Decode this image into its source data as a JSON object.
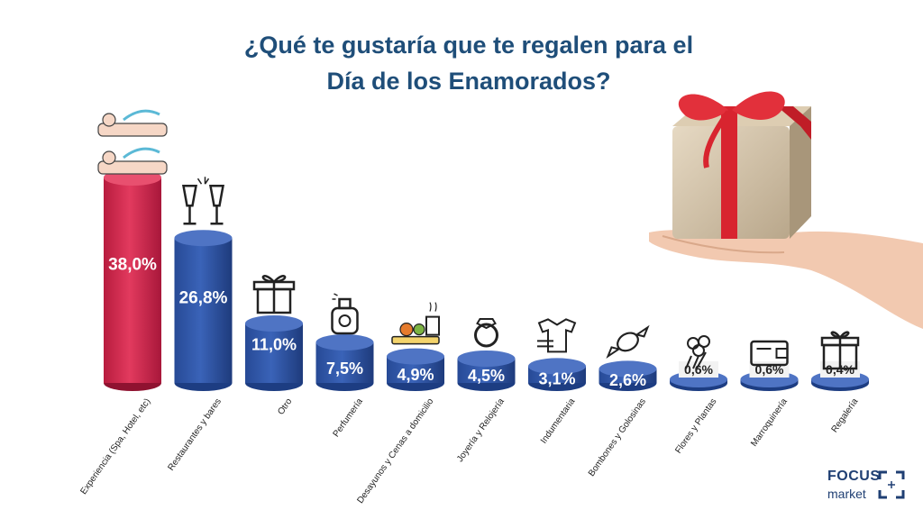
{
  "chart_data": {
    "type": "bar",
    "title_lines": [
      "¿Qué te gustaría que te regalen para el",
      "Día de los Enamorados?"
    ],
    "categories": [
      "Experiencia (Spa, Hotel, etc)",
      "Restaurantes y bares",
      "Otro",
      "Perfumería",
      "Desayunos y Cenas a domicilio",
      "Joyería y Relojería",
      "Indumentaria",
      "Bombones y Golosinas",
      "Flores y Plantas",
      "Marroquinería",
      "Regalería"
    ],
    "values": [
      38.0,
      26.8,
      11.0,
      7.5,
      4.9,
      4.5,
      3.1,
      2.6,
      0.6,
      0.6,
      0.4
    ],
    "value_labels": [
      "38,0%",
      "26,8%",
      "11,0%",
      "7,5%",
      "4,9%",
      "4,5%",
      "3,1%",
      "2,6%",
      "0,6%",
      "0,6%",
      "0,4%"
    ],
    "icons": [
      "spa-icon",
      "champagne-glasses-icon",
      "gift-icon",
      "perfume-icon",
      "breakfast-icon",
      "ring-icon",
      "clothes-icon",
      "candy-icon",
      "flowers-icon",
      "wallet-icon",
      "gift-box-icon"
    ],
    "colors": {
      "highlight": "#d9264d",
      "bar": "#2f55a8",
      "bar_dark": "#1d3d82",
      "title": "#1f4e79"
    }
  },
  "logo": {
    "line1": "FOCUS",
    "line2": "market"
  }
}
